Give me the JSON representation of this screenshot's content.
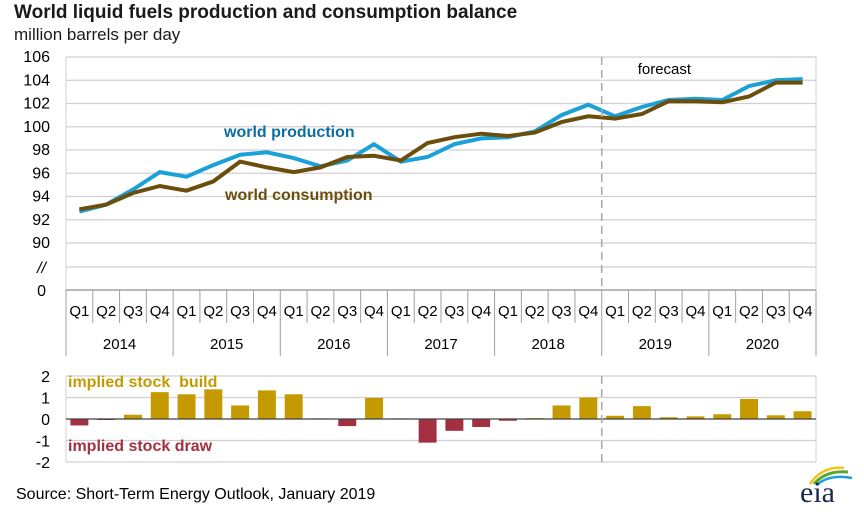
{
  "title": "World liquid fuels production and consumption balance",
  "subtitle": "million barrels per day",
  "source": "Source: Short-Term Energy Outlook, January 2019",
  "logo_text": "eia",
  "colors": {
    "production_line": "#1ba0d8",
    "production_label": "#0b6fa4",
    "consumption": "#6b4e0c",
    "build": "#c49a00",
    "draw": "#a33040",
    "grid": "#d0d0d0",
    "axis": "#a0a0a0"
  },
  "chart_data": [
    {
      "type": "line",
      "title": "World liquid fuels production and consumption balance",
      "ylabel": "million barrels per day",
      "ylim": [
        90,
        106
      ],
      "yticks": [
        "106",
        "104",
        "102",
        "100",
        "98",
        "96",
        "94",
        "92",
        "90",
        "//",
        "0"
      ],
      "ytick_values": [
        106,
        104,
        102,
        100,
        98,
        96,
        94,
        92,
        90
      ],
      "axis_break_label": "//",
      "zero_label": "0",
      "grid": true,
      "quarters": [
        "Q1",
        "Q2",
        "Q3",
        "Q4"
      ],
      "years": [
        "2014",
        "2015",
        "2016",
        "2017",
        "2018",
        "2019",
        "2020"
      ],
      "forecast_label": "forecast",
      "forecast_start": "2019 Q1",
      "series": [
        {
          "name": "world production",
          "label": "world production",
          "values": [
            92.7,
            93.3,
            94.6,
            96.1,
            95.7,
            96.7,
            97.6,
            97.8,
            97.3,
            96.6,
            97.1,
            98.5,
            97.0,
            97.4,
            98.5,
            99.0,
            99.1,
            99.6,
            101.0,
            101.9,
            100.9,
            101.7,
            102.3,
            102.4,
            102.3,
            103.5,
            104.0,
            104.1
          ]
        },
        {
          "name": "world consumption",
          "label": "world consumption",
          "values": [
            92.9,
            93.3,
            94.3,
            94.9,
            94.5,
            95.3,
            97.0,
            96.5,
            96.1,
            96.5,
            97.4,
            97.5,
            97.1,
            98.6,
            99.1,
            99.4,
            99.2,
            99.5,
            100.4,
            100.9,
            100.7,
            101.1,
            102.2,
            102.2,
            102.1,
            102.6,
            103.8,
            103.8
          ]
        }
      ]
    },
    {
      "type": "bar",
      "title": "implied stock change",
      "ylim": [
        -2,
        2
      ],
      "yticks": [
        "2",
        "1",
        "0",
        "-1",
        "-2"
      ],
      "ytick_values": [
        2,
        1,
        0,
        -1,
        -2
      ],
      "grid": true,
      "positive_label": "implied stock  build",
      "negative_label": "implied stock draw",
      "values": [
        -0.3,
        -0.03,
        0.2,
        1.25,
        1.15,
        1.38,
        0.63,
        1.33,
        1.15,
        0.03,
        -0.33,
        0.98,
        0.03,
        -1.1,
        -0.55,
        -0.37,
        -0.08,
        0.04,
        0.63,
        1.0,
        0.15,
        0.6,
        0.08,
        0.12,
        0.22,
        0.93,
        0.17,
        0.36
      ]
    }
  ]
}
